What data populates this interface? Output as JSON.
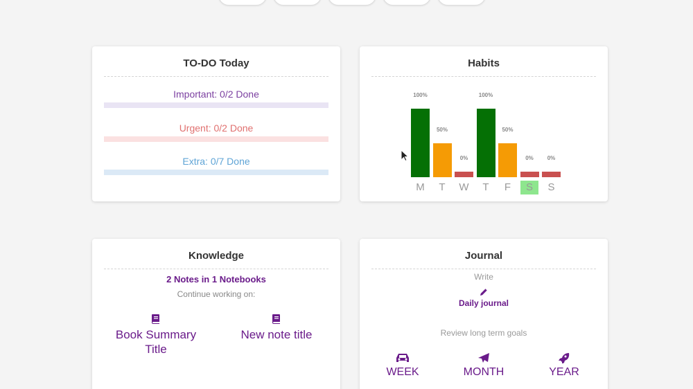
{
  "todo": {
    "title": "TO-DO Today",
    "rows": [
      {
        "label": "Important: 0/2 Done",
        "color": "#7b3fa0",
        "bar_color": "#e9e4f4"
      },
      {
        "label": "Urgent: 0/2 Done",
        "color": "#e0706f",
        "bar_color": "#fbe1e1"
      },
      {
        "label": "Extra: 0/7 Done",
        "color": "#5fa4d6",
        "bar_color": "#dbe9f6"
      }
    ]
  },
  "habits": {
    "title": "Habits",
    "active_day_index": 5,
    "chart_data": {
      "type": "bar",
      "categories": [
        "M",
        "T",
        "W",
        "T",
        "F",
        "S",
        "S"
      ],
      "values": [
        100,
        50,
        0,
        100,
        50,
        0,
        0
      ],
      "value_labels": [
        "100%",
        "50%",
        "0%",
        "100%",
        "50%",
        "0%",
        "0%"
      ],
      "colors": [
        "#057005",
        "#f59b05",
        "#c9504f",
        "#057005",
        "#f59b05",
        "#c9504f",
        "#c9504f"
      ],
      "ylim": [
        0,
        100
      ]
    }
  },
  "knowledge": {
    "title": "Knowledge",
    "summary": "2 Notes in 1 Notebooks",
    "subtitle": "Continue working on:",
    "notes": [
      {
        "title": "Book Summary Title",
        "icon": "book-icon"
      },
      {
        "title": "New note title",
        "icon": "book-icon"
      }
    ]
  },
  "journal": {
    "title": "Journal",
    "write_label": "Write",
    "daily_label": "Daily journal",
    "review_label": "Review long term goals",
    "goals": [
      {
        "label": "WEEK",
        "icon": "car-icon"
      },
      {
        "label": "MONTH",
        "icon": "plane-icon"
      },
      {
        "label": "YEAR",
        "icon": "rocket-icon"
      }
    ]
  }
}
